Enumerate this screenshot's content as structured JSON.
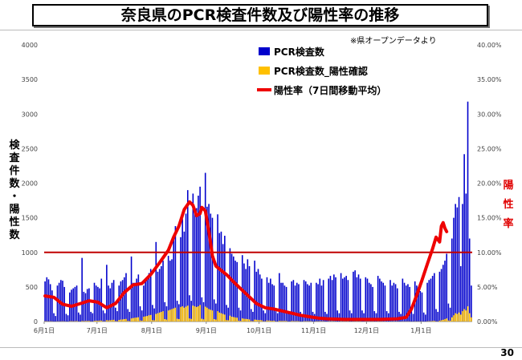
{
  "page": {
    "title": "奈良県のPCR検査件数及び陽性率の推移",
    "page_number": "30"
  },
  "chart_data": {
    "type": "bar",
    "note": "※県オープンデータより",
    "ylabel_left_chars": [
      "検",
      "査",
      "件",
      "数",
      "・",
      "陽",
      "性",
      "数"
    ],
    "ylabel_right_chars": [
      "陽",
      "性",
      "率"
    ],
    "ylim": [
      0,
      4000
    ],
    "y_ticks": [
      "0",
      "500",
      "1000",
      "1500",
      "2000",
      "2500",
      "3000",
      "3500",
      "4000"
    ],
    "y2lim": [
      0,
      40
    ],
    "y2_ticks": [
      "0.00%",
      "5.00%",
      "10.00%",
      "15.00%",
      "20.00%",
      "25.00%",
      "30.00%",
      "35.00%",
      "40.00%"
    ],
    "x_tick_labels": [
      "6月1日",
      "7月1日",
      "8月1日",
      "9月1日",
      "10月1日",
      "11月1日",
      "12月1日",
      "1月1日"
    ],
    "x_tick_days": [
      0,
      30,
      61,
      92,
      122,
      153,
      183,
      214
    ],
    "reference_line": {
      "value": 1000,
      "color": "#c00000"
    },
    "colors": {
      "tests": "#0000cc",
      "positives": "#ffc000",
      "rate": "#ee0000"
    },
    "series": [
      {
        "name": "PCR検査数",
        "kind": "bar",
        "start_day": 0,
        "values": [
          580,
          640,
          610,
          540,
          450,
          120,
          80,
          520,
          560,
          600,
          590,
          500,
          110,
          90,
          420,
          460,
          480,
          500,
          520,
          130,
          100,
          920,
          430,
          410,
          470,
          480,
          140,
          120,
          560,
          520,
          500,
          480,
          620,
          160,
          120,
          820,
          520,
          480,
          560,
          600,
          200,
          150,
          520,
          580,
          600,
          640,
          700,
          180,
          140,
          940,
          560,
          560,
          620,
          680,
          220,
          160,
          520,
          600,
          650,
          700,
          760,
          240,
          190,
          1150,
          720,
          760,
          800,
          880,
          280,
          220,
          950,
          880,
          900,
          1200,
          1380,
          300,
          250,
          1220,
          1480,
          1300,
          1560,
          1900,
          380,
          300,
          1850,
          1600,
          1640,
          1820,
          1950,
          350,
          280,
          2150,
          1660,
          1700,
          1560,
          1500,
          320,
          260,
          1550,
          1280,
          1300,
          1120,
          1240,
          240,
          200,
          1060,
          980,
          940,
          880,
          860,
          200,
          160,
          960,
          840,
          760,
          900,
          800,
          180,
          140,
          880,
          720,
          760,
          680,
          620,
          160,
          120,
          640,
          560,
          620,
          540,
          520,
          150,
          120,
          700,
          560,
          560,
          520,
          500,
          140,
          110,
          580,
          600,
          520,
          560,
          540,
          140,
          110,
          600,
          580,
          540,
          520,
          560,
          140,
          110,
          560,
          540,
          620,
          520,
          600,
          140,
          110,
          620,
          660,
          600,
          680,
          640,
          160,
          120,
          700,
          620,
          640,
          660,
          600,
          160,
          120,
          720,
          740,
          640,
          680,
          620,
          160,
          120,
          640,
          620,
          560,
          540,
          500,
          150,
          120,
          660,
          620,
          580,
          560,
          520,
          150,
          120,
          600,
          520,
          560,
          540,
          480,
          140,
          110,
          620,
          560,
          520,
          540,
          500,
          150,
          110,
          580,
          520,
          500,
          440,
          420,
          130,
          100,
          560,
          600,
          620,
          660,
          700,
          180,
          140,
          720,
          760,
          820,
          880,
          980,
          260,
          200,
          1200,
          1500,
          1700,
          1650,
          1800,
          800,
          1700,
          2420,
          1850,
          3180,
          1200,
          520
        ]
      },
      {
        "name": "PCR検査数_陽性確認",
        "kind": "bar",
        "start_day": 0,
        "values": [
          5,
          4,
          3,
          4,
          3,
          1,
          1,
          3,
          2,
          3,
          4,
          3,
          1,
          0,
          5,
          6,
          4,
          5,
          7,
          2,
          1,
          8,
          6,
          9,
          8,
          10,
          3,
          2,
          10,
          12,
          11,
          14,
          13,
          4,
          3,
          20,
          16,
          18,
          22,
          25,
          6,
          5,
          22,
          28,
          30,
          35,
          38,
          9,
          7,
          45,
          50,
          55,
          58,
          62,
          15,
          12,
          70,
          75,
          80,
          90,
          95,
          20,
          18,
          110,
          120,
          130,
          140,
          150,
          35,
          28,
          160,
          170,
          180,
          190,
          200,
          40,
          35,
          210,
          220,
          200,
          215,
          230,
          45,
          38,
          230,
          220,
          210,
          220,
          240,
          40,
          32,
          215,
          200,
          180,
          170,
          160,
          35,
          28,
          150,
          130,
          120,
          110,
          100,
          22,
          18,
          85,
          70,
          65,
          60,
          55,
          12,
          10,
          45,
          40,
          38,
          35,
          30,
          8,
          6,
          28,
          25,
          22,
          20,
          18,
          5,
          4,
          16,
          14,
          12,
          10,
          12,
          3,
          2,
          10,
          9,
          8,
          9,
          8,
          2,
          2,
          8,
          7,
          6,
          7,
          6,
          2,
          1,
          6,
          5,
          6,
          5,
          5,
          1,
          1,
          5,
          4,
          5,
          4,
          4,
          1,
          1,
          4,
          4,
          5,
          4,
          3,
          1,
          1,
          4,
          3,
          4,
          3,
          4,
          1,
          1,
          3,
          3,
          4,
          3,
          3,
          1,
          1,
          3,
          3,
          3,
          2,
          3,
          1,
          1,
          3,
          2,
          3,
          2,
          2,
          1,
          1,
          2,
          2,
          3,
          2,
          2,
          1,
          1,
          3,
          2,
          2,
          3,
          2,
          1,
          1,
          3,
          2,
          3,
          2,
          2,
          1,
          1,
          4,
          5,
          6,
          8,
          10,
          3,
          2,
          12,
          18,
          25,
          35,
          45,
          15,
          12,
          60,
          90,
          120,
          110,
          130,
          100,
          150,
          180,
          160,
          220,
          120,
          60
        ]
      },
      {
        "name": "陽性率（7日間移動平均）",
        "kind": "line",
        "axis": "right",
        "x": [
          0,
          5,
          10,
          15,
          20,
          25,
          30,
          35,
          40,
          45,
          50,
          55,
          60,
          65,
          70,
          73,
          76,
          79,
          82,
          84,
          86,
          88,
          89,
          91,
          93,
          95,
          97,
          100,
          103,
          106,
          110,
          115,
          120,
          125,
          130,
          135,
          140,
          145,
          150,
          155,
          160,
          170,
          180,
          190,
          200,
          205,
          208,
          211,
          214,
          217,
          220,
          222,
          224,
          225,
          226,
          227,
          228
        ],
        "y": [
          3.7,
          3.5,
          2.5,
          2.2,
          2.6,
          3.0,
          2.8,
          2.0,
          2.6,
          4.2,
          5.3,
          5.5,
          6.8,
          8.5,
          10.3,
          12.2,
          13.8,
          16.2,
          17.3,
          16.8,
          15.3,
          15.6,
          16.5,
          16.0,
          13.0,
          9.5,
          8.0,
          7.4,
          6.8,
          6.0,
          5.0,
          3.8,
          2.6,
          2.0,
          1.8,
          1.5,
          1.2,
          0.9,
          0.7,
          0.5,
          0.4,
          0.3,
          0.3,
          0.3,
          0.4,
          0.6,
          1.8,
          3.8,
          6.0,
          8.3,
          10.5,
          12.2,
          11.5,
          13.8,
          14.3,
          13.5,
          13.0
        ]
      }
    ]
  }
}
